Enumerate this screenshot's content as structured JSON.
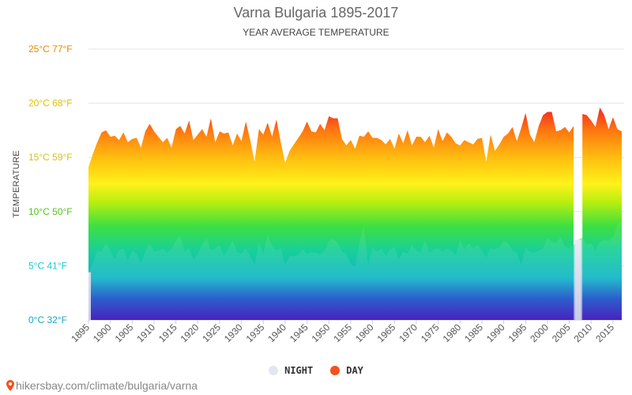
{
  "chart_data": {
    "type": "area",
    "title": "Varna Bulgaria 1895-2017",
    "subtitle": "YEAR AVERAGE TEMPERATURE",
    "ylabel": "TEMPERATURE",
    "xlabel": "",
    "ylim": [
      0,
      25
    ],
    "xlim": [
      1895,
      2017
    ],
    "grid": true,
    "legend_position": "bottom",
    "y_ticks": [
      {
        "label": "0°C 32°F",
        "value": 0,
        "color": "#1aa3c4"
      },
      {
        "label": "5°C 41°F",
        "value": 5,
        "color": "#19c7d8"
      },
      {
        "label": "10°C 50°F",
        "value": 10,
        "color": "#53c41a"
      },
      {
        "label": "15°C 59°F",
        "value": 15,
        "color": "#d6c21a"
      },
      {
        "label": "20°C 68°F",
        "value": 20,
        "color": "#e3c000"
      },
      {
        "label": "25°C 77°F",
        "value": 25,
        "color": "#e58a00"
      }
    ],
    "x_ticks": [
      "1895",
      "1900",
      "1905",
      "1910",
      "1915",
      "1920",
      "1925",
      "1930",
      "1935",
      "1940",
      "1945",
      "1950",
      "1955",
      "1960",
      "1965",
      "1970",
      "1975",
      "1980",
      "1985",
      "1990",
      "1995",
      "2000",
      "2005",
      "2010",
      "2015"
    ],
    "series": [
      {
        "name": "DAY",
        "color": "#f4511e",
        "years": [
          1895,
          1896,
          1897,
          1898,
          1899,
          1900,
          1901,
          1902,
          1903,
          1904,
          1905,
          1906,
          1907,
          1908,
          1909,
          1910,
          1911,
          1912,
          1913,
          1914,
          1915,
          1916,
          1917,
          1918,
          1919,
          1920,
          1921,
          1922,
          1923,
          1924,
          1925,
          1926,
          1927,
          1928,
          1929,
          1930,
          1931,
          1932,
          1933,
          1934,
          1935,
          1936,
          1937,
          1938,
          1939,
          1940,
          1941,
          1942,
          1943,
          1944,
          1945,
          1946,
          1947,
          1948,
          1949,
          1950,
          1951,
          1952,
          1953,
          1954,
          1955,
          1956,
          1957,
          1958,
          1959,
          1960,
          1961,
          1962,
          1963,
          1964,
          1965,
          1966,
          1967,
          1968,
          1969,
          1970,
          1971,
          1972,
          1973,
          1974,
          1975,
          1976,
          1977,
          1978,
          1979,
          1980,
          1981,
          1982,
          1983,
          1984,
          1985,
          1986,
          1987,
          1988,
          1989,
          1990,
          1991,
          1992,
          1993,
          1994,
          1995,
          1996,
          1997,
          1998,
          1999,
          2000,
          2001,
          2002,
          2003,
          2004,
          2005,
          2006,
          2007,
          2008,
          2009,
          2010,
          2011,
          2012,
          2013,
          2014,
          2015,
          2016,
          2017
        ],
        "values": [
          14.1,
          15.3,
          16.4,
          17.3,
          17.5,
          16.9,
          17.0,
          16.6,
          17.3,
          16.4,
          16.7,
          16.8,
          15.9,
          17.4,
          18.1,
          17.4,
          16.9,
          16.4,
          16.8,
          15.9,
          17.6,
          17.9,
          17.2,
          18.4,
          16.6,
          17.1,
          17.6,
          16.9,
          18.6,
          16.4,
          17.4,
          17.2,
          17.3,
          16.1,
          17.2,
          16.5,
          18.3,
          16.6,
          14.6,
          17.6,
          17.1,
          18.2,
          16.9,
          18.5,
          16.4,
          14.5,
          15.6,
          16.2,
          16.8,
          17.4,
          18.3,
          17.4,
          17.3,
          18.1,
          17.5,
          18.8,
          18.6,
          18.6,
          16.7,
          16.1,
          16.6,
          15.8,
          17.0,
          16.9,
          17.4,
          16.8,
          16.8,
          16.6,
          16.2,
          16.7,
          15.8,
          17.2,
          16.3,
          17.5,
          16.1,
          16.9,
          16.9,
          16.4,
          17.0,
          15.9,
          17.6,
          16.5,
          17.3,
          16.9,
          16.3,
          16.1,
          16.6,
          16.4,
          16.2,
          16.7,
          16.8,
          14.6,
          17.1,
          15.6,
          16.2,
          16.9,
          17.2,
          17.8,
          16.5,
          17.7,
          19.1,
          17.1,
          16.4,
          17.9,
          18.9,
          19.2,
          19.2,
          17.4,
          17.5,
          17.8,
          17.3,
          17.9,
          null,
          19.0,
          18.9,
          18.4,
          17.8,
          19.6,
          18.9,
          17.6,
          18.7,
          17.6,
          17.4
        ],
        "partial_years_note": ""
      },
      {
        "name": "NIGHT",
        "color": "#e3e5f2",
        "years": [
          1895,
          1896,
          1897,
          1898,
          1899,
          1900,
          1901,
          1902,
          1903,
          1904,
          1905,
          1906,
          1907,
          1908,
          1909,
          1910,
          1911,
          1912,
          1913,
          1914,
          1915,
          1916,
          1917,
          1918,
          1919,
          1920,
          1921,
          1922,
          1923,
          1924,
          1925,
          1926,
          1927,
          1928,
          1929,
          1930,
          1931,
          1932,
          1933,
          1934,
          1935,
          1936,
          1937,
          1938,
          1939,
          1940,
          1941,
          1942,
          1943,
          1944,
          1945,
          1946,
          1947,
          1948,
          1949,
          1950,
          1951,
          1952,
          1953,
          1954,
          1955,
          1956,
          1957,
          1958,
          1959,
          1960,
          1961,
          1962,
          1963,
          1964,
          1965,
          1966,
          1967,
          1968,
          1969,
          1970,
          1971,
          1972,
          1973,
          1974,
          1975,
          1976,
          1977,
          1978,
          1979,
          1980,
          1981,
          1982,
          1983,
          1984,
          1985,
          1986,
          1987,
          1988,
          1989,
          1990,
          1991,
          1992,
          1993,
          1994,
          1995,
          1996,
          1997,
          1998,
          1999,
          2000,
          2001,
          2002,
          2003,
          2004,
          2005,
          2006,
          2007,
          2008,
          2009,
          2010,
          2011,
          2012,
          2013,
          2014,
          2015,
          2016,
          2017
        ],
        "values": [
          4.4,
          5.2,
          6.4,
          6.3,
          7.1,
          6.4,
          5.6,
          6.5,
          6.6,
          5.5,
          6.4,
          6.1,
          5.3,
          6.3,
          7.1,
          6.3,
          6.4,
          6.6,
          6.2,
          6.5,
          7.3,
          7.8,
          6.3,
          6.6,
          5.6,
          6.1,
          6.9,
          7.6,
          6.4,
          6.6,
          6.9,
          5.9,
          6.6,
          7.3,
          6.3,
          6.1,
          6.6,
          5.9,
          5.1,
          7.2,
          6.1,
          7.9,
          6.8,
          6.4,
          6.6,
          5.1,
          5.9,
          5.9,
          6.0,
          6.5,
          6.1,
          6.3,
          6.2,
          6.0,
          6.4,
          7.3,
          7.5,
          7.1,
          6.3,
          6.1,
          5.2,
          4.9,
          7.2,
          8.6,
          5.1,
          6.7,
          6.3,
          6.6,
          5.9,
          6.5,
          6.7,
          5.6,
          6.3,
          6.1,
          6.9,
          6.4,
          6.2,
          7.3,
          6.2,
          6.5,
          6.6,
          6.3,
          6.6,
          6.4,
          6.0,
          7.3,
          6.5,
          7.1,
          6.6,
          6.9,
          6.4,
          5.8,
          6.6,
          6.5,
          6.7,
          7.3,
          7.1,
          6.4,
          6.2,
          5.1,
          6.7,
          6.3,
          6.2,
          6.4,
          6.6,
          7.6,
          7.2,
          7.1,
          7.6,
          6.8,
          6.6,
          6.9,
          7.4,
          7.6,
          6.9,
          7.1,
          6.4,
          7.2,
          7.4,
          7.3,
          7.6,
          8.8,
          9.1
        ]
      }
    ]
  },
  "legend": {
    "night": {
      "label": "NIGHT",
      "color": "#e3e5f2"
    },
    "day": {
      "label": "DAY",
      "color": "#f4511e"
    }
  },
  "footer": {
    "link_text": "hikersbay.com/climate/bulgaria/varna",
    "pin_color": "#f4511e"
  }
}
